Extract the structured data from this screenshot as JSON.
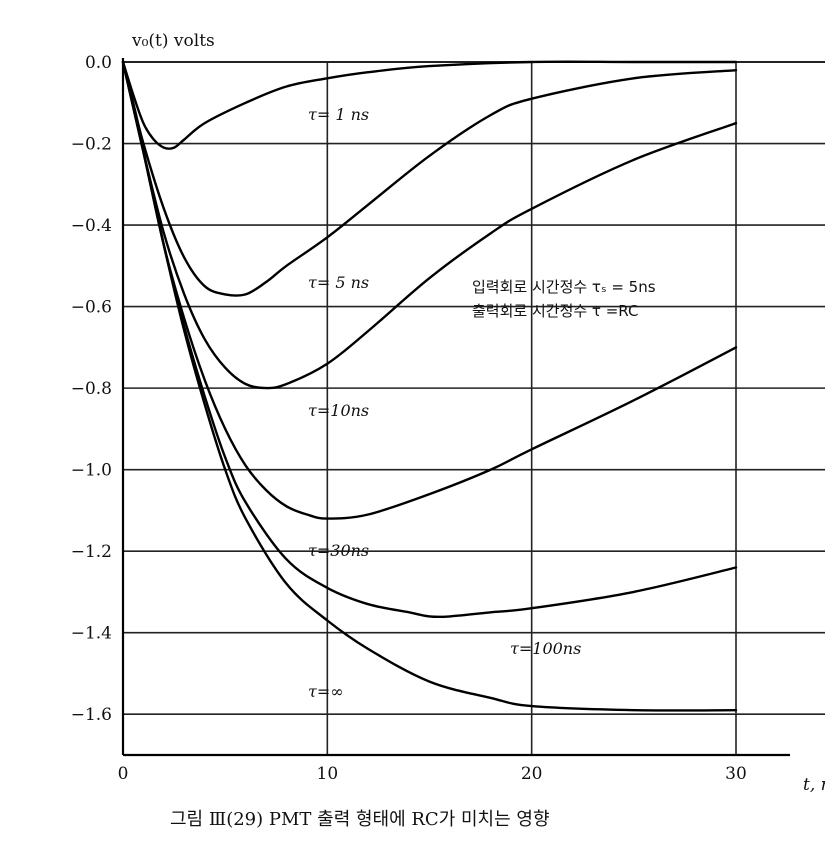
{
  "chart_data": {
    "type": "line",
    "ylabel": "v₀(t) volts",
    "xlabel": "t, n",
    "caption": "그림 Ⅲ(29)  PMT 출력 형태에 RC가 미치는 영향",
    "annotation_lines": [
      "입력회로 시간정수 τₛ = 5ns",
      "출력회로 시간정수 τ =RC"
    ],
    "xlim": [
      0,
      30
    ],
    "ylim": [
      -1.7,
      0
    ],
    "xticks": [
      "0",
      "10",
      "20",
      "30"
    ],
    "yticks": [
      "0.0",
      "−0.2",
      "−0.4",
      "−0.6",
      "−0.8",
      "−1.0",
      "−1.2",
      "−1.4",
      "−1.6"
    ],
    "grid": true,
    "series": [
      {
        "name": "τ= 1 ns",
        "label_text": "τ= 1 ns",
        "x": [
          0,
          0.5,
          1,
          1.5,
          2,
          2.5,
          3,
          4,
          6,
          8,
          10,
          12,
          15,
          20,
          25,
          30
        ],
        "y": [
          0,
          -0.08,
          -0.15,
          -0.19,
          -0.21,
          -0.21,
          -0.19,
          -0.15,
          -0.1,
          -0.06,
          -0.04,
          -0.025,
          -0.01,
          0,
          0,
          0
        ]
      },
      {
        "name": "τ= 5 ns",
        "label_text": "τ= 5 ns",
        "x": [
          0,
          0.5,
          1,
          2,
          3,
          4,
          5,
          6,
          7,
          8,
          10,
          12,
          15,
          18,
          20,
          25,
          30
        ],
        "y": [
          0,
          -0.1,
          -0.2,
          -0.36,
          -0.48,
          -0.55,
          -0.57,
          -0.57,
          -0.54,
          -0.5,
          -0.43,
          -0.35,
          -0.23,
          -0.13,
          -0.09,
          -0.04,
          -0.02
        ]
      },
      {
        "name": "τ=10ns",
        "label_text": "τ=10ns",
        "x": [
          0,
          1,
          2,
          3,
          4,
          5,
          6,
          7,
          8,
          10,
          12,
          15,
          18,
          20,
          25,
          30
        ],
        "y": [
          0,
          -0.22,
          -0.42,
          -0.57,
          -0.68,
          -0.75,
          -0.79,
          -0.8,
          -0.79,
          -0.74,
          -0.66,
          -0.53,
          -0.42,
          -0.36,
          -0.24,
          -0.15
        ]
      },
      {
        "name": "τ=30ns",
        "label_text": "τ=30ns",
        "x": [
          0,
          1,
          2,
          3,
          4,
          5,
          6,
          7,
          8,
          9,
          10,
          12,
          15,
          18,
          20,
          25,
          30
        ],
        "y": [
          0,
          -0.22,
          -0.45,
          -0.63,
          -0.78,
          -0.9,
          -0.99,
          -1.05,
          -1.09,
          -1.11,
          -1.12,
          -1.11,
          -1.06,
          -1.0,
          -0.95,
          -0.83,
          -0.7
        ]
      },
      {
        "name": "τ=100ns",
        "label_text": "τ=100ns",
        "x": [
          0,
          1,
          2,
          3,
          4,
          5,
          6,
          8,
          10,
          12,
          14,
          15,
          16,
          18,
          20,
          25,
          30
        ],
        "y": [
          0,
          -0.22,
          -0.45,
          -0.65,
          -0.82,
          -0.97,
          -1.08,
          -1.22,
          -1.29,
          -1.33,
          -1.35,
          -1.36,
          -1.36,
          -1.35,
          -1.34,
          -1.3,
          -1.24
        ]
      },
      {
        "name": "τ=∞",
        "label_text": "τ=∞",
        "x": [
          0,
          1,
          2,
          3,
          4,
          5,
          6,
          8,
          10,
          12,
          15,
          18,
          20,
          25,
          30
        ],
        "y": [
          0,
          -0.22,
          -0.45,
          -0.66,
          -0.84,
          -1.0,
          -1.12,
          -1.28,
          -1.37,
          -1.44,
          -1.52,
          -1.56,
          -1.58,
          -1.59,
          -1.59
        ]
      }
    ]
  }
}
